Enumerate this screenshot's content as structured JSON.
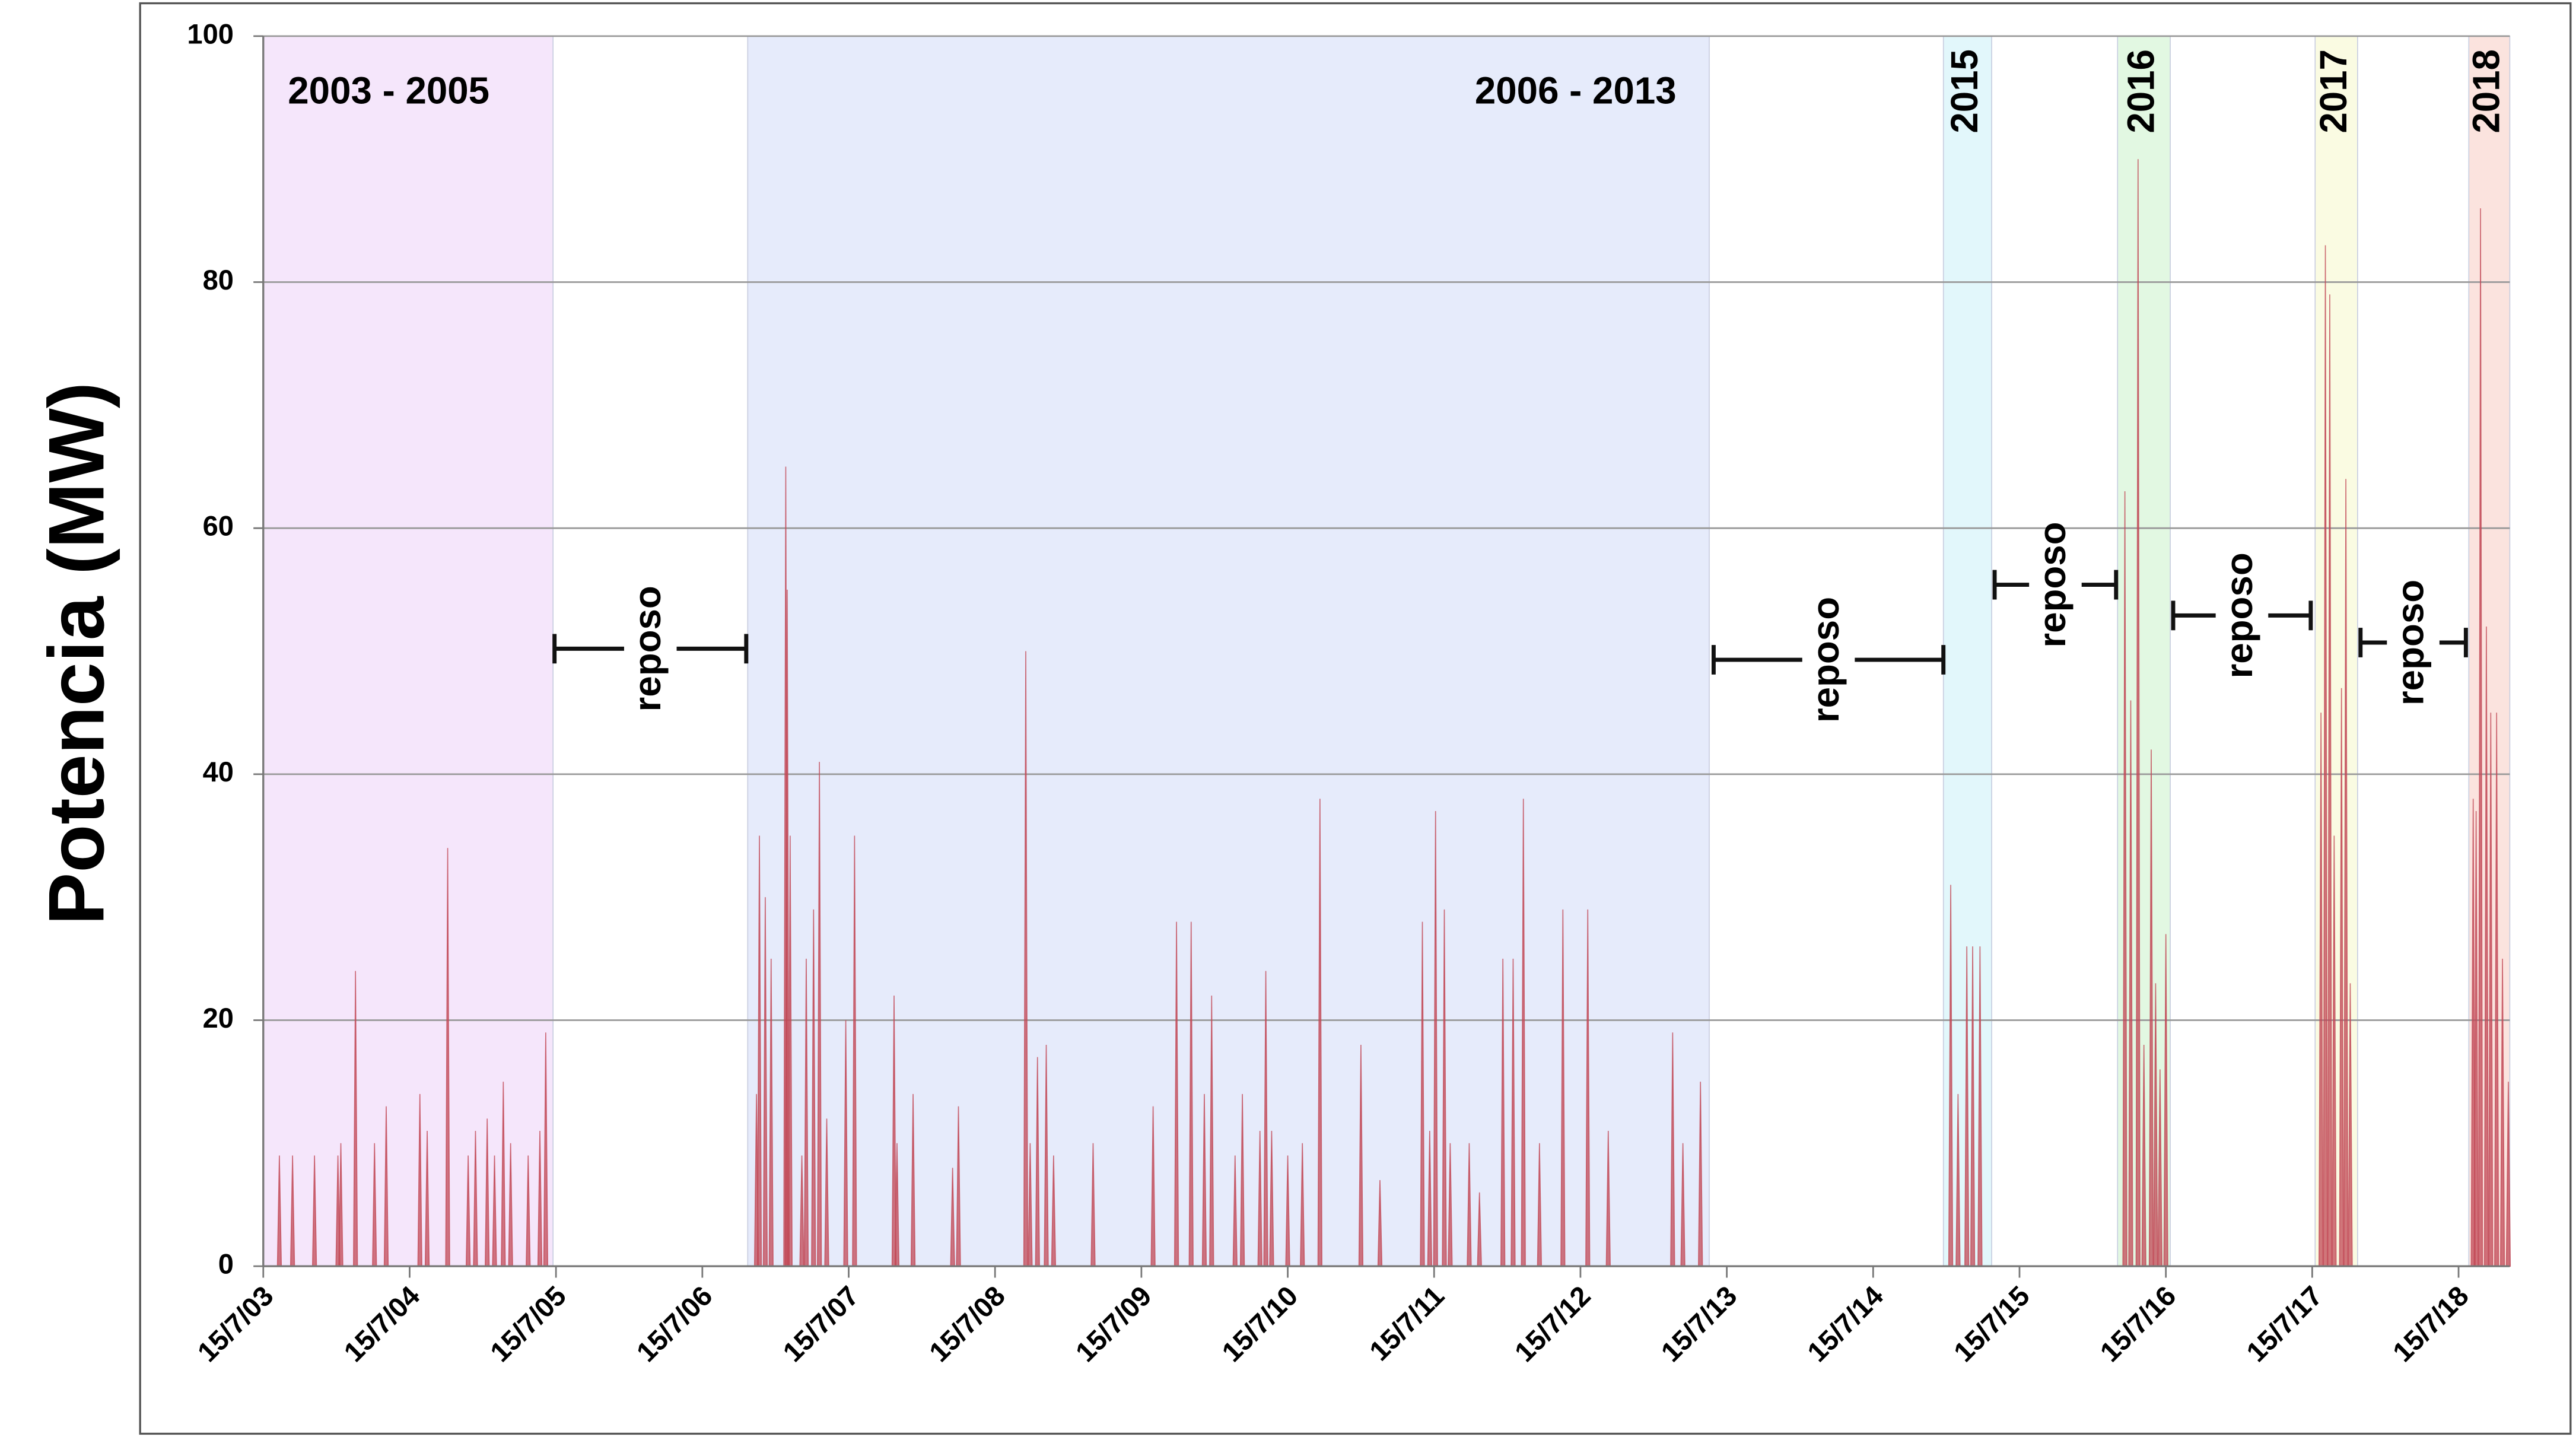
{
  "chart_data": {
    "type": "spike",
    "y_label": "Potencia (MW)",
    "ylim": [
      0,
      100
    ],
    "yticks": [
      0,
      20,
      40,
      60,
      80,
      100
    ],
    "grid": true,
    "xlim": [
      2003.54,
      2018.89
    ],
    "xticks": [
      {
        "value": 2003.54,
        "label": "15/7/03"
      },
      {
        "value": 2004.54,
        "label": "15/7/04"
      },
      {
        "value": 2005.54,
        "label": "15/7/05"
      },
      {
        "value": 2006.54,
        "label": "15/7/06"
      },
      {
        "value": 2007.54,
        "label": "15/7/07"
      },
      {
        "value": 2008.54,
        "label": "15/7/08"
      },
      {
        "value": 2009.54,
        "label": "15/7/09"
      },
      {
        "value": 2010.54,
        "label": "15/7/10"
      },
      {
        "value": 2011.54,
        "label": "15/7/11"
      },
      {
        "value": 2012.54,
        "label": "15/7/12"
      },
      {
        "value": 2013.54,
        "label": "15/7/13"
      },
      {
        "value": 2014.54,
        "label": "15/7/14"
      },
      {
        "value": 2015.54,
        "label": "15/7/15"
      },
      {
        "value": 2016.54,
        "label": "15/7/16"
      },
      {
        "value": 2017.54,
        "label": "15/7/17"
      },
      {
        "value": 2018.54,
        "label": "15/7/18"
      }
    ],
    "color": "#c24a57",
    "periods": [
      {
        "label": "2003 - 2005",
        "start": 2003.54,
        "end": 2005.52,
        "color": "#f5e6fb"
      },
      {
        "label": "2006 - 2013",
        "start": 2006.85,
        "end": 2013.42,
        "color": "#e6ebfb"
      },
      {
        "label": "2015",
        "start": 2015.02,
        "end": 2015.35,
        "color": "#e2f7fb"
      },
      {
        "label": "2016",
        "start": 2016.21,
        "end": 2016.57,
        "color": "#e2f8e2"
      },
      {
        "label": "2017",
        "start": 2017.56,
        "end": 2017.85,
        "color": "#fafbe2"
      },
      {
        "label": "2018",
        "start": 2018.61,
        "end": 2018.89,
        "color": "#fbe3de"
      }
    ],
    "rest_periods": [
      {
        "label": "reposo",
        "start": 2005.53,
        "end": 2006.84,
        "y": 50.2
      },
      {
        "label": "reposo",
        "start": 2013.45,
        "end": 2015.02,
        "y": 49.3
      },
      {
        "label": "reposo",
        "start": 2015.37,
        "end": 2016.2,
        "y": 55.4
      },
      {
        "label": "reposo",
        "start": 2016.59,
        "end": 2017.53,
        "y": 52.9
      },
      {
        "label": "reposo",
        "start": 2017.87,
        "end": 2018.59,
        "y": 50.7
      }
    ],
    "x": [
      2003.65,
      2003.74,
      2003.89,
      2004.05,
      2004.07,
      2004.17,
      2004.3,
      2004.38,
      2004.61,
      2004.66,
      2004.8,
      2004.94,
      2004.99,
      2005.07,
      2005.12,
      2005.18,
      2005.23,
      2005.35,
      2005.43,
      2005.47,
      2006.91,
      2006.93,
      2006.97,
      2007.01,
      2007.11,
      2007.12,
      2007.14,
      2007.22,
      2007.25,
      2007.3,
      2007.34,
      2007.39,
      2007.52,
      2007.58,
      2007.85,
      2007.87,
      2007.98,
      2008.25,
      2008.29,
      2008.75,
      2008.78,
      2008.83,
      2008.89,
      2008.94,
      2009.21,
      2009.62,
      2009.78,
      2009.88,
      2009.97,
      2010.02,
      2010.18,
      2010.23,
      2010.35,
      2010.39,
      2010.43,
      2010.54,
      2010.64,
      2010.76,
      2011.04,
      2011.17,
      2011.46,
      2011.51,
      2011.55,
      2011.61,
      2011.65,
      2011.78,
      2011.85,
      2012.01,
      2012.08,
      2012.15,
      2012.26,
      2012.42,
      2012.59,
      2012.73,
      2013.17,
      2013.24,
      2013.36,
      2015.07,
      2015.12,
      2015.18,
      2015.22,
      2015.27,
      2016.26,
      2016.3,
      2016.35,
      2016.39,
      2016.44,
      2016.47,
      2016.5,
      2016.54,
      2017.6,
      2017.63,
      2017.66,
      2017.69,
      2017.74,
      2017.77,
      2017.8,
      2018.64,
      2018.66,
      2018.69,
      2018.73,
      2018.76,
      2018.8,
      2018.84,
      2018.88
    ],
    "values": [
      9,
      9,
      9,
      9,
      10,
      24,
      10,
      13,
      14,
      11,
      34,
      9,
      11,
      12,
      9,
      15,
      10,
      9,
      11,
      19,
      14,
      35,
      30,
      25,
      65,
      55,
      35,
      9,
      25,
      29,
      41,
      12,
      20,
      35,
      22,
      10,
      14,
      8,
      13,
      50,
      10,
      17,
      18,
      9,
      10,
      13,
      28,
      28,
      14,
      22,
      9,
      14,
      11,
      24,
      11,
      9,
      10,
      38,
      18,
      7,
      28,
      11,
      37,
      29,
      10,
      10,
      6,
      25,
      25,
      38,
      10,
      29,
      29,
      11,
      19,
      10,
      15,
      31,
      14,
      26,
      26,
      26,
      63,
      46,
      90,
      18,
      42,
      23,
      16,
      27,
      45,
      83,
      79,
      35,
      47,
      64,
      23,
      38,
      37,
      86,
      52,
      45,
      45,
      25,
      15
    ]
  }
}
